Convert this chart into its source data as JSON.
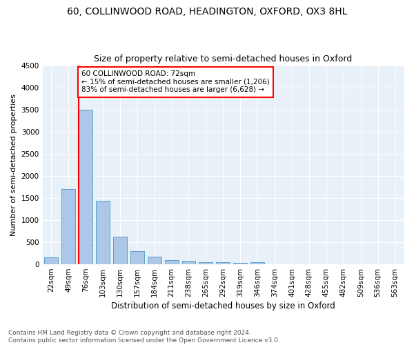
{
  "title1": "60, COLLINWOOD ROAD, HEADINGTON, OXFORD, OX3 8HL",
  "title2": "Size of property relative to semi-detached houses in Oxford",
  "xlabel": "Distribution of semi-detached houses by size in Oxford",
  "ylabel": "Number of semi-detached properties",
  "categories": [
    "22sqm",
    "49sqm",
    "76sqm",
    "103sqm",
    "130sqm",
    "157sqm",
    "184sqm",
    "211sqm",
    "238sqm",
    "265sqm",
    "292sqm",
    "319sqm",
    "346sqm",
    "374sqm",
    "401sqm",
    "428sqm",
    "455sqm",
    "482sqm",
    "509sqm",
    "536sqm",
    "563sqm"
  ],
  "values": [
    150,
    1700,
    3500,
    1440,
    620,
    300,
    165,
    100,
    75,
    50,
    45,
    40,
    55,
    0,
    0,
    0,
    0,
    0,
    0,
    0,
    0
  ],
  "bar_color": "#adc8e6",
  "bar_edge_color": "#5a9fd4",
  "vline_color": "red",
  "annotation_box_text": "60 COLLINWOOD ROAD: 72sqm\n← 15% of semi-detached houses are smaller (1,206)\n83% of semi-detached houses are larger (6,628) →",
  "annotation_box_color": "white",
  "annotation_box_edge_color": "red",
  "ylim": [
    0,
    4500
  ],
  "yticks": [
    0,
    500,
    1000,
    1500,
    2000,
    2500,
    3000,
    3500,
    4000,
    4500
  ],
  "bg_color": "#e8f0f8",
  "footer_text": "Contains HM Land Registry data © Crown copyright and database right 2024.\nContains public sector information licensed under the Open Government Licence v3.0.",
  "title1_fontsize": 10,
  "title2_fontsize": 9,
  "xlabel_fontsize": 8.5,
  "ylabel_fontsize": 8,
  "tick_fontsize": 7.5,
  "annotation_fontsize": 7.5,
  "footer_fontsize": 6.5
}
